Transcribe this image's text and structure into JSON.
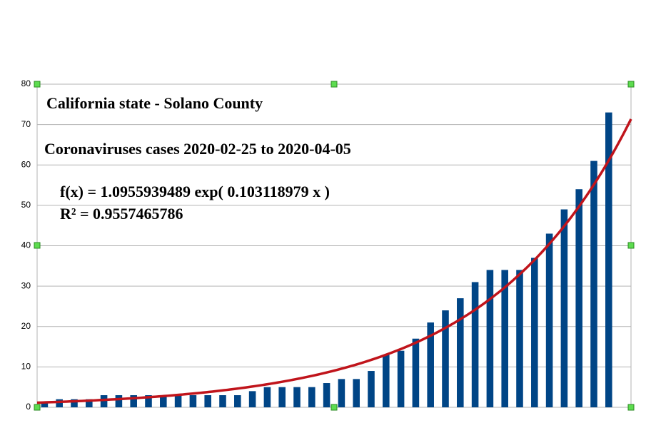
{
  "chart_data": {
    "type": "bar",
    "title": "California state - Solano County",
    "subtitle": "Coronaviruses cases 2020-02-25 to 2020-04-05",
    "equation": "f(x) = 1.0955939489 exp( 0.103118979 x )",
    "r_squared": "R² = 0.9557465786",
    "x": [
      1,
      2,
      3,
      4,
      5,
      6,
      7,
      8,
      9,
      10,
      11,
      12,
      13,
      14,
      15,
      16,
      17,
      18,
      19,
      20,
      21,
      22,
      23,
      24,
      25,
      26,
      27,
      28,
      29,
      30,
      31,
      32,
      33,
      34,
      35,
      36,
      37,
      38,
      39
    ],
    "values": [
      1,
      2,
      2,
      2,
      3,
      3,
      3,
      3,
      3,
      3,
      3,
      3,
      3,
      3,
      4,
      5,
      5,
      5,
      5,
      6,
      7,
      7,
      9,
      13,
      14,
      17,
      21,
      24,
      27,
      31,
      34,
      34,
      34,
      37,
      43,
      49,
      54,
      61,
      73
    ],
    "color": "#004586",
    "xlim": [
      0.5,
      40.5
    ],
    "ylim": [
      0,
      80
    ],
    "yticks": [
      0,
      10,
      20,
      30,
      40,
      50,
      60,
      70,
      80
    ],
    "grid": true,
    "trendline": {
      "type": "exp",
      "a": 1.0955939489,
      "b": 0.103118979,
      "color": "#c0141b"
    }
  }
}
